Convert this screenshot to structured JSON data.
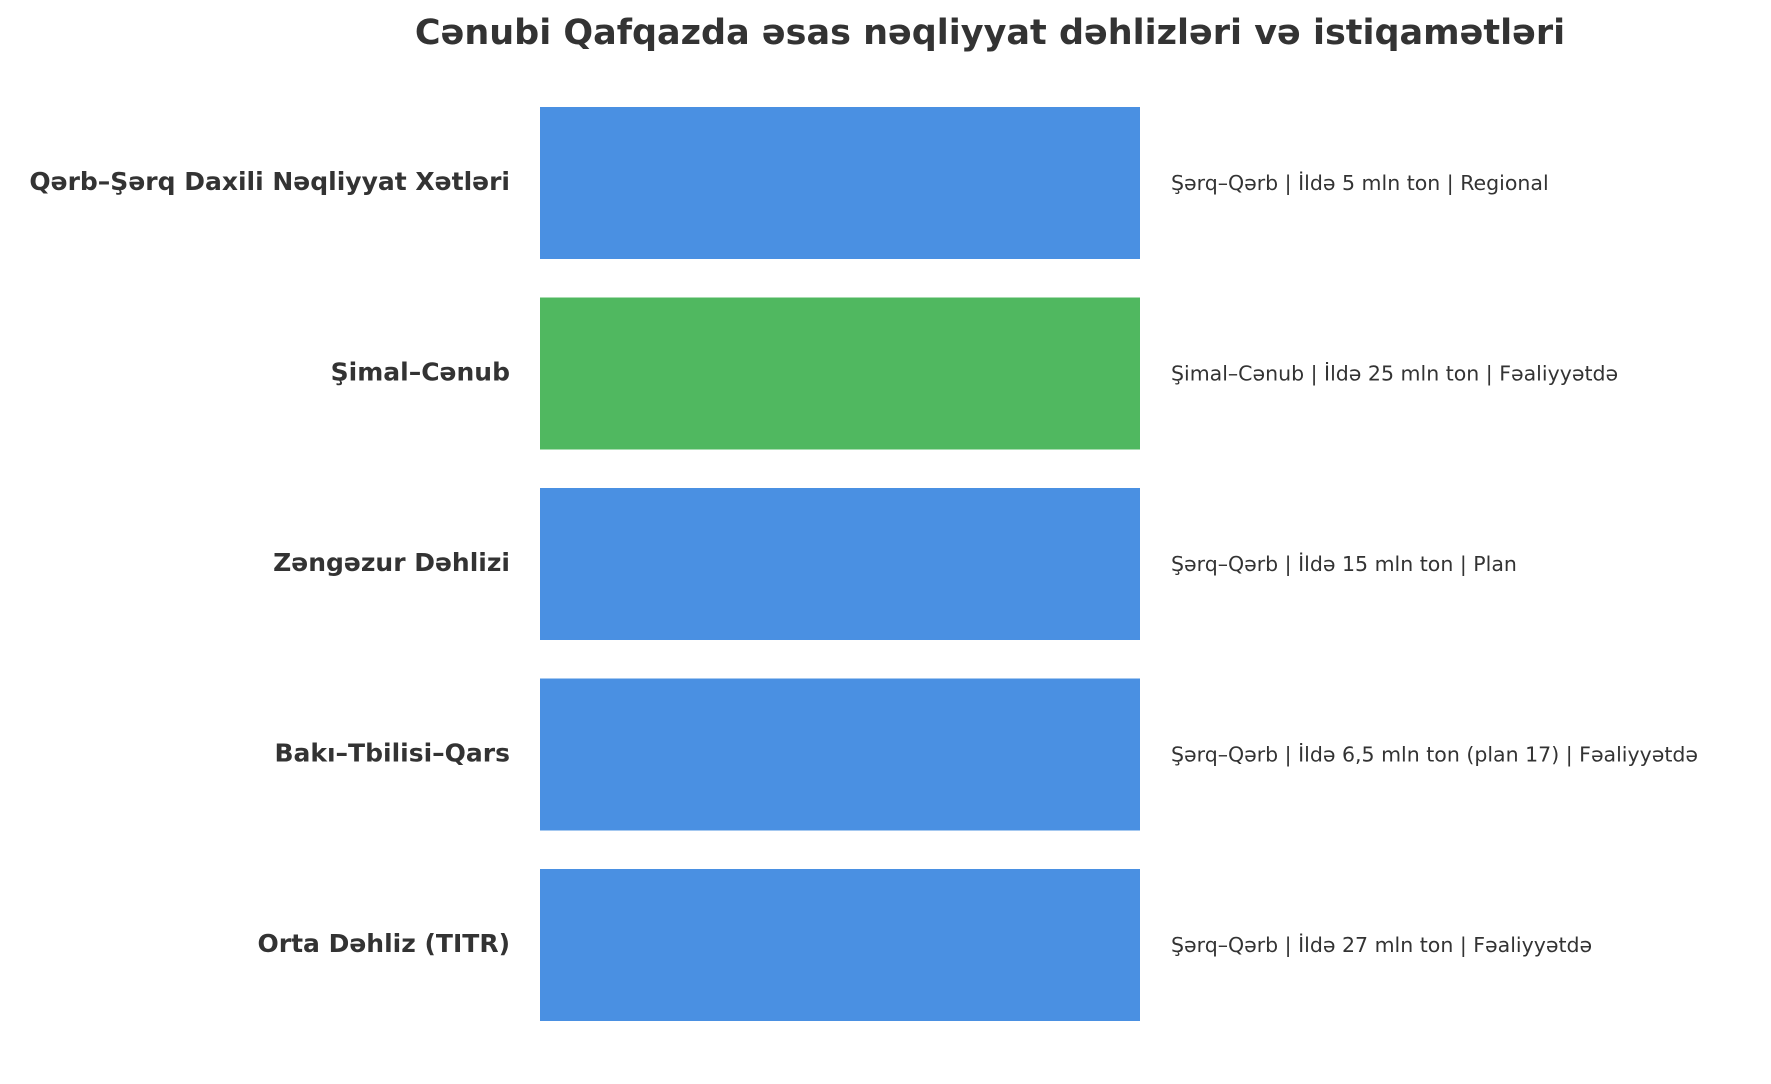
{
  "title": "Cənubi Qafqazda əsas nəqliyyat dəhlizləri və istiqamətləri",
  "items": [
    {
      "label": "Qərb–Şərq Daxili Nəqliyyat Xətləri",
      "description": "Şərq–Qərb | İldə 5 mln ton | Regional",
      "color": "#4a90e2"
    },
    {
      "label": "Şimal–Cənub",
      "description": "Şimal–Cənub | İldə 25 mln ton | Fəaliyyətdə",
      "color": "#50b860"
    },
    {
      "label": "Zəngəzur Dəhlizi",
      "description": "Şərq–Qərb | İldə 15 mln ton | Plan",
      "color": "#4a90e2"
    },
    {
      "label": "Bakı–Tbilisi–Qars",
      "description": "Şərq–Qərb | İldə 6,5 mln ton (plan 17) | Fəaliyyətdə",
      "color": "#4a90e2"
    },
    {
      "label": "Orta Dəhliz (TITR)",
      "description": "Şərq–Qərb | İldə 27 mln ton | Fəaliyyətdə",
      "color": "#4a90e2"
    }
  ]
}
